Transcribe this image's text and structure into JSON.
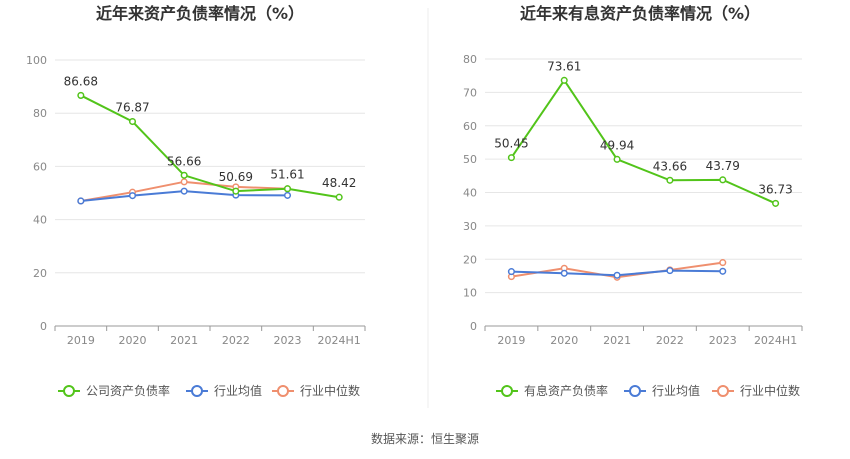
{
  "source": "数据来源：恒生聚源",
  "colors": {
    "company": "#52c41a",
    "industry_avg": "#4a7bd6",
    "industry_median": "#ef8f6e",
    "grid": "#e6e6e6",
    "axis": "#999999"
  },
  "chart_data": [
    {
      "type": "line",
      "title": "近年来资产负债率情况（%）",
      "categories": [
        "2019",
        "2020",
        "2021",
        "2022",
        "2023",
        "2024H1"
      ],
      "ylim": [
        0,
        100
      ],
      "yticks": [
        0,
        20,
        40,
        60,
        80,
        100
      ],
      "series": [
        {
          "key": "company",
          "name": "公司资产负债率",
          "values": [
            86.68,
            76.87,
            56.66,
            50.69,
            51.61,
            48.42
          ],
          "labels": true
        },
        {
          "key": "industry_avg",
          "name": "行业均值",
          "values": [
            47.0,
            49.0,
            50.7,
            49.2,
            49.1,
            null
          ],
          "labels": false
        },
        {
          "key": "industry_median",
          "name": "行业中位数",
          "values": [
            47.0,
            50.3,
            54.2,
            52.3,
            51.6,
            null
          ],
          "labels": false
        }
      ]
    },
    {
      "type": "line",
      "title": "近年来有息资产负债率情况（%）",
      "categories": [
        "2019",
        "2020",
        "2021",
        "2022",
        "2023",
        "2024H1"
      ],
      "ylim": [
        0,
        80
      ],
      "yticks": [
        0,
        10,
        20,
        30,
        40,
        50,
        60,
        70,
        80
      ],
      "series": [
        {
          "key": "company",
          "name": "有息资产负债率",
          "values": [
            50.45,
            73.61,
            49.94,
            43.66,
            43.79,
            36.73
          ],
          "labels": true
        },
        {
          "key": "industry_avg",
          "name": "行业均值",
          "values": [
            16.3,
            15.8,
            15.2,
            16.6,
            16.4,
            null
          ],
          "labels": false
        },
        {
          "key": "industry_median",
          "name": "行业中位数",
          "values": [
            14.8,
            17.3,
            14.6,
            16.8,
            19.0,
            null
          ],
          "labels": false
        }
      ]
    }
  ]
}
